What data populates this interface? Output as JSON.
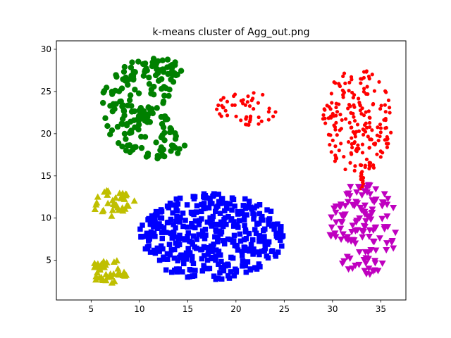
{
  "chart_data": {
    "type": "scatter",
    "title": "k-means cluster of Agg_out.png",
    "xlabel": "",
    "ylabel": "",
    "xlim": [
      1.4,
      37.6
    ],
    "ylim": [
      0.3,
      31.0
    ],
    "xticks": [
      5,
      10,
      15,
      20,
      25,
      30,
      35
    ],
    "yticks": [
      5,
      10,
      15,
      20,
      25,
      30
    ],
    "grid": false,
    "legend": "none",
    "clusters": [
      {
        "marker": "circle",
        "color": "#008000",
        "count": 200,
        "shape": "crescent",
        "center": [
          11.5,
          23
        ],
        "radius": [
          5.5,
          6
        ]
      },
      {
        "marker": "small-circle",
        "color": "#ff0000",
        "count": 50,
        "shape": "ellipse",
        "center": [
          21.2,
          23
        ],
        "radius": [
          3.2,
          2.1
        ]
      },
      {
        "marker": "small-circle",
        "color": "#ff0000",
        "count": 200,
        "shape": "ellipse",
        "center": [
          32.6,
          21.5
        ],
        "radius": [
          3.6,
          6.3
        ]
      },
      {
        "marker": "small-circle",
        "color": "#ff0000",
        "count": 12,
        "shape": "bridge",
        "from": [
          33.0,
          15.5
        ],
        "to": [
          33.1,
          13.5
        ]
      },
      {
        "marker": "triangle-up",
        "color": "#bfbf00",
        "count": 40,
        "shape": "ellipse",
        "center": [
          7.3,
          11.8
        ],
        "radius": [
          2.2,
          1.8
        ]
      },
      {
        "marker": "triangle-up",
        "color": "#bfbf00",
        "count": 45,
        "shape": "ellipse",
        "center": [
          6.8,
          3.7
        ],
        "radius": [
          2.0,
          1.4
        ]
      },
      {
        "marker": "square",
        "color": "#0000ff",
        "count": 400,
        "shape": "ellipse",
        "center": [
          17.5,
          7.8
        ],
        "radius": [
          7.6,
          5.1
        ]
      },
      {
        "marker": "triangle-down",
        "color": "#bf00bf",
        "count": 130,
        "shape": "ellipse",
        "center": [
          33.2,
          8.7
        ],
        "radius": [
          3.5,
          5.5
        ]
      }
    ]
  }
}
